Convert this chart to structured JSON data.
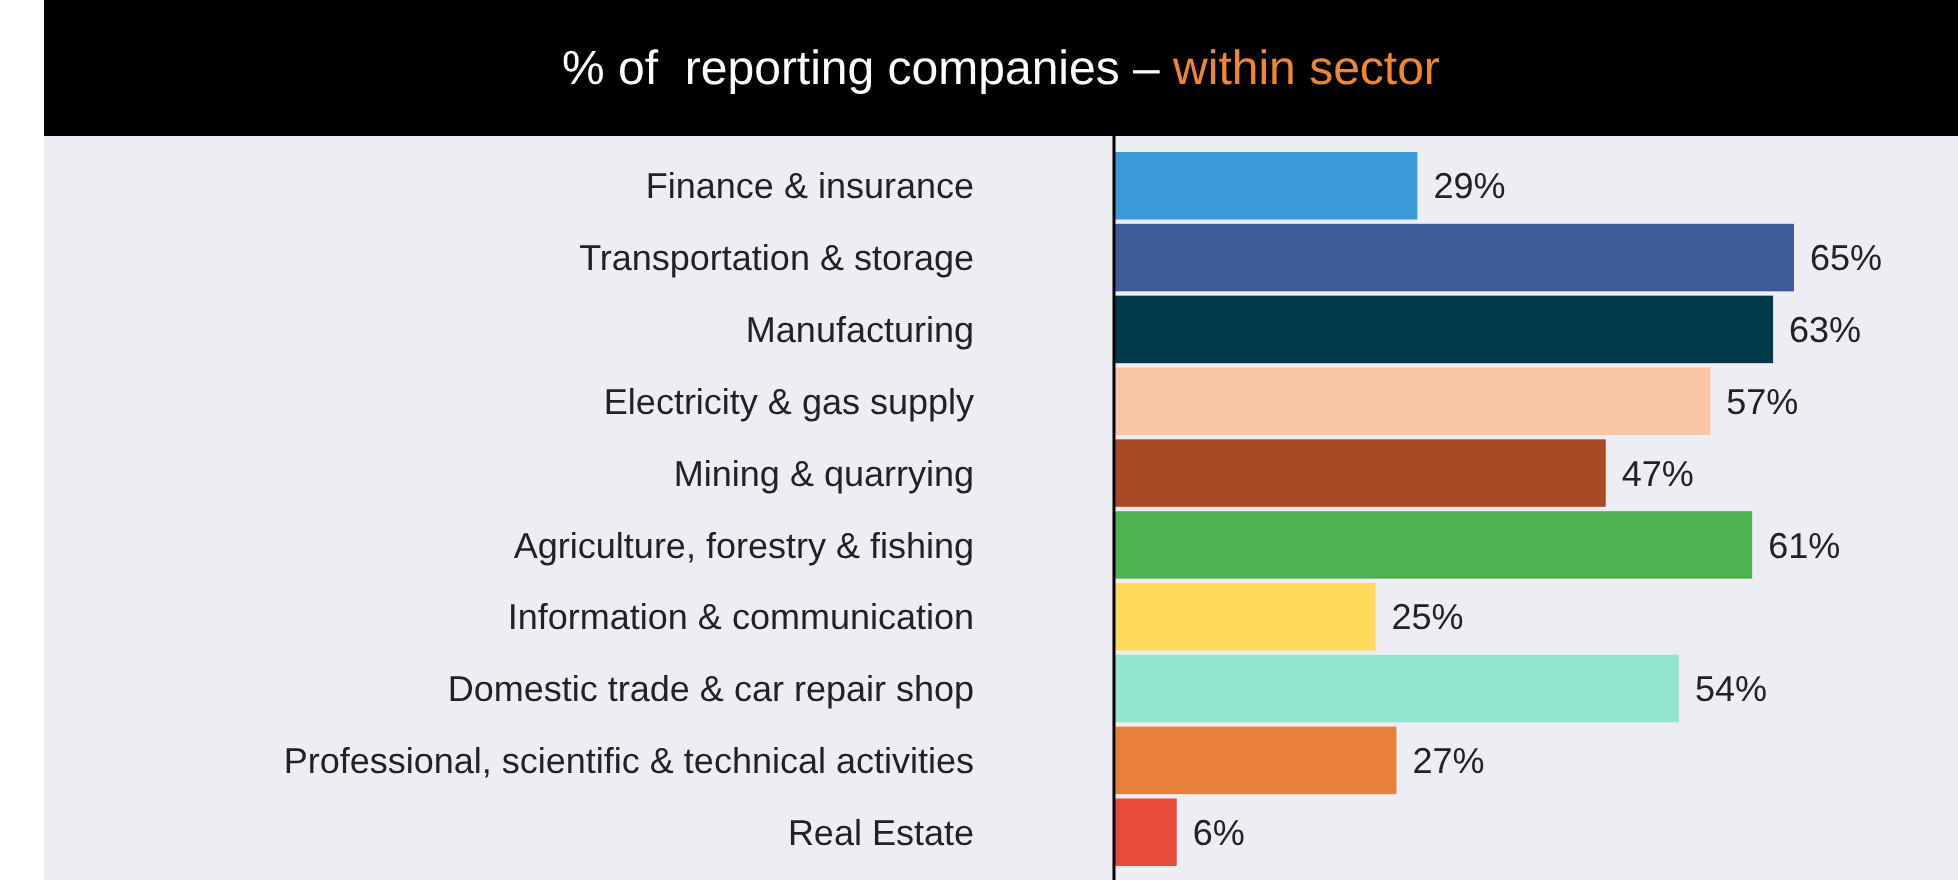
{
  "chart_data": {
    "type": "bar",
    "orientation": "horizontal",
    "title": "% of  reporting companies –",
    "subtitle": "within sector",
    "categories": [
      "Finance & insurance",
      "Transportation & storage",
      "Manufacturing",
      "Electricity & gas supply",
      "Mining & quarrying",
      "Agriculture, forestry & fishing",
      "Information & communication",
      "Domestic trade & car repair shop",
      "Professional, scientific & technical activities",
      "Real Estate"
    ],
    "values": [
      29,
      65,
      63,
      57,
      47,
      61,
      25,
      54,
      27,
      6
    ],
    "colors": [
      "#3a9ad9",
      "#3d5a99",
      "#023a4a",
      "#f8c6a2",
      "#a84a25",
      "#4db350",
      "#ffd95a",
      "#93e5cf",
      "#e8803a",
      "#e74c3c"
    ],
    "value_labels": [
      "29%",
      "65%",
      "63%",
      "57%",
      "47%",
      "61%",
      "25%",
      "54%",
      "27%",
      "6%"
    ]
  }
}
